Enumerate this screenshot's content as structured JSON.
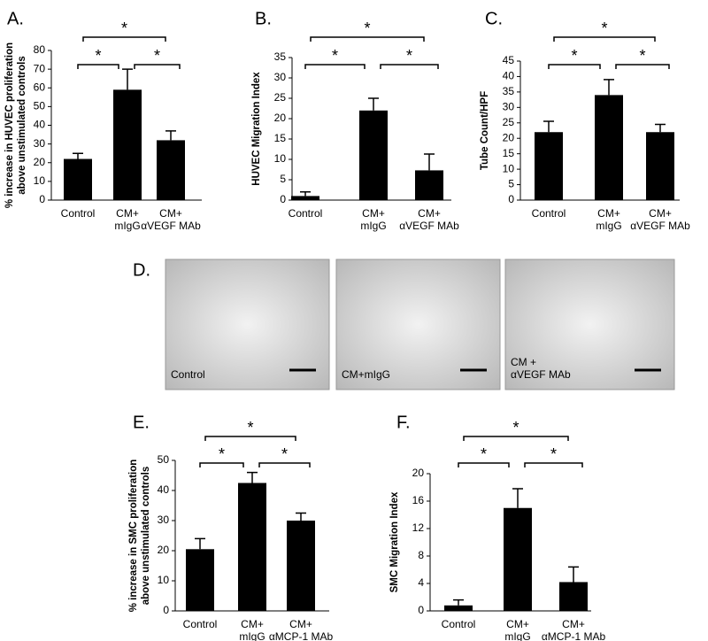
{
  "chart_data": [
    {
      "type": "bar",
      "panel": "A.",
      "ylabel": [
        "% increase in HUVEC proliferation",
        "above unstimulated controls"
      ],
      "categories": [
        [
          "Control"
        ],
        [
          "CM+",
          "mIgG"
        ],
        [
          "CM+",
          "αVEGF MAb"
        ]
      ],
      "values": [
        22,
        59,
        32
      ],
      "errors": [
        3,
        11,
        5
      ],
      "color": "#000000",
      "ylim": [
        0,
        80
      ],
      "yticks": [
        0,
        10,
        20,
        30,
        40,
        50,
        60,
        70,
        80
      ],
      "annotations": [
        "*",
        "*",
        "*"
      ]
    },
    {
      "type": "bar",
      "panel": "B.",
      "ylabel": [
        "HUVEC Migration Index"
      ],
      "categories": [
        [
          "Control"
        ],
        [
          "CM+",
          "mIgG"
        ],
        [
          "CM+",
          "αVEGF MAb"
        ]
      ],
      "values": [
        1,
        22,
        7.3
      ],
      "errors": [
        1,
        3,
        4
      ],
      "color": "#000000",
      "ylim": [
        0,
        35
      ],
      "yticks": [
        0,
        5,
        10,
        15,
        20,
        25,
        30,
        35
      ],
      "annotations": [
        "*",
        "*",
        "*"
      ]
    },
    {
      "type": "bar",
      "panel": "C.",
      "ylabel": [
        "Tube Count/HPF"
      ],
      "categories": [
        [
          "Control"
        ],
        [
          "CM+",
          "mIgG"
        ],
        [
          "CM+",
          "αVEGF MAb"
        ]
      ],
      "values": [
        22,
        34,
        22
      ],
      "errors": [
        3.5,
        5,
        2.5
      ],
      "color": "#000000",
      "ylim": [
        0,
        45
      ],
      "yticks": [
        0,
        5,
        10,
        15,
        20,
        25,
        30,
        35,
        40,
        45
      ],
      "annotations": [
        "*",
        "*",
        "*"
      ]
    },
    {
      "type": "bar",
      "panel": "E.",
      "ylabel": [
        "% increase in SMC proliferation",
        "above unstimulated controls"
      ],
      "categories": [
        [
          "Control"
        ],
        [
          "CM+",
          "mIgG"
        ],
        [
          "CM+",
          "αMCP-1 MAb"
        ]
      ],
      "values": [
        20.5,
        42.5,
        30
      ],
      "errors": [
        3.5,
        3.5,
        2.5
      ],
      "color": "#000000",
      "ylim": [
        0,
        50
      ],
      "yticks": [
        0,
        10,
        20,
        30,
        40,
        50
      ],
      "annotations": [
        "*",
        "*",
        "*"
      ]
    },
    {
      "type": "bar",
      "panel": "F.",
      "ylabel": [
        "SMC Migration Index"
      ],
      "categories": [
        [
          "Control"
        ],
        [
          "CM+",
          "mIgG"
        ],
        [
          "CM+",
          "αMCP-1 MAb"
        ]
      ],
      "values": [
        0.8,
        15,
        4.2
      ],
      "errors": [
        0.8,
        2.8,
        2.2
      ],
      "color": "#000000",
      "ylim": [
        0,
        20
      ],
      "yticks": [
        0,
        4,
        8,
        12,
        16,
        20
      ],
      "annotations": [
        "*",
        "*",
        "*"
      ]
    }
  ],
  "panel_d": {
    "label": "D.",
    "images": [
      {
        "caption": [
          "Control"
        ]
      },
      {
        "caption": [
          "CM+mIgG"
        ]
      },
      {
        "caption": [
          "CM +",
          "αVEGF MAb"
        ]
      }
    ]
  }
}
